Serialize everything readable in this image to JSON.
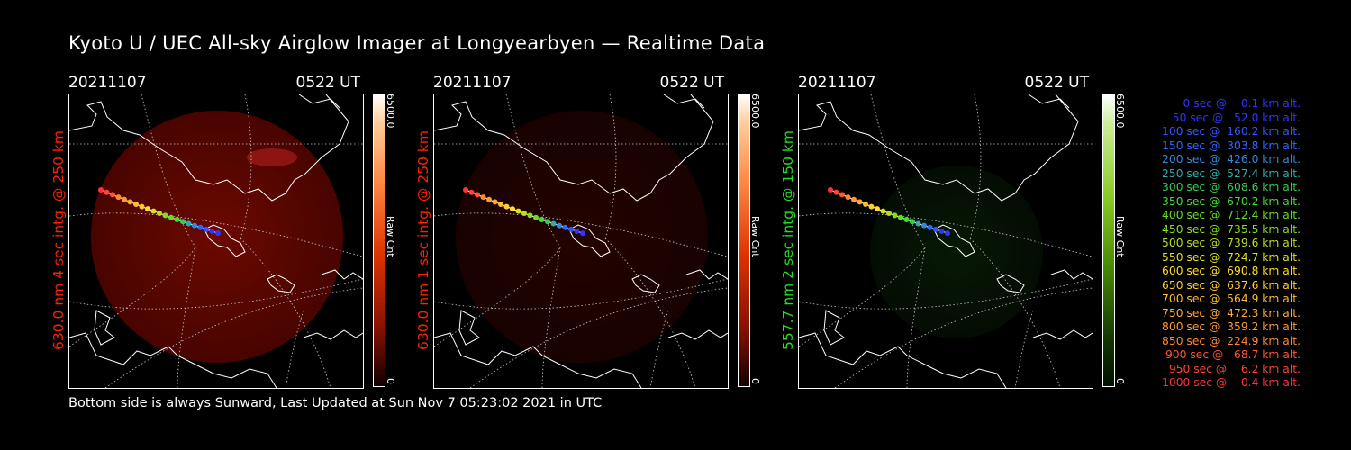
{
  "title": "Kyoto U / UEC All-sky Airglow Imager at Longyearbyen — Realtime Data",
  "footer": "Bottom side is always Sunward, Last Updated at Sun Nov  7 05:23:02 2021 in UTC",
  "colors": {
    "panel1_accent": "#ff2200",
    "panel2_accent": "#ff2200",
    "panel3_accent": "#22dd22",
    "track_start": "#ff3333",
    "track_mid": "#ffdd00",
    "track_end": "#3344ff"
  },
  "panels": [
    {
      "date": "20211107",
      "time": "0522 UT",
      "ylabel": "630.0 nm 4 sec intg. @ 250 km",
      "cbar_max": "6500.0",
      "cbar_min": "0",
      "cbar_unit": "Raw Cnt",
      "glow_intensity": 0.9,
      "glow_color": "red"
    },
    {
      "date": "20211107",
      "time": "0522 UT",
      "ylabel": "630.0 nm 1 sec intg. @ 250 km",
      "cbar_max": "6500.0",
      "cbar_min": "0",
      "cbar_unit": "Raw Cnt",
      "glow_intensity": 0.3,
      "glow_color": "red"
    },
    {
      "date": "20211107",
      "time": "0522 UT",
      "ylabel": "557.7 nm 2 sec intg. @ 150 km",
      "cbar_max": "6500.0",
      "cbar_min": "0",
      "cbar_unit": "Raw Cnt",
      "glow_intensity": 0.35,
      "glow_color": "green"
    }
  ],
  "legend": [
    {
      "text": "   0 sec @    0.1 km alt.",
      "color": "#3333ff"
    },
    {
      "text": "  50 sec @   52.0 km alt.",
      "color": "#3333ff"
    },
    {
      "text": " 100 sec @  160.2 km alt.",
      "color": "#3355ff"
    },
    {
      "text": " 150 sec @  303.8 km alt.",
      "color": "#3366ff"
    },
    {
      "text": " 200 sec @  426.0 km alt.",
      "color": "#3388dd"
    },
    {
      "text": " 250 sec @  527.4 km alt.",
      "color": "#33aaaa"
    },
    {
      "text": " 300 sec @  608.6 km alt.",
      "color": "#33cc55"
    },
    {
      "text": " 350 sec @  670.2 km alt.",
      "color": "#44dd33"
    },
    {
      "text": " 400 sec @  712.4 km alt.",
      "color": "#66dd22"
    },
    {
      "text": " 450 sec @  735.5 km alt.",
      "color": "#88dd22"
    },
    {
      "text": " 500 sec @  739.6 km alt.",
      "color": "#bbdd22"
    },
    {
      "text": " 550 sec @  724.7 km alt.",
      "color": "#dddd22"
    },
    {
      "text": " 600 sec @  690.8 km alt.",
      "color": "#ffdd22"
    },
    {
      "text": " 650 sec @  637.6 km alt.",
      "color": "#ffcc33"
    },
    {
      "text": " 700 sec @  564.9 km alt.",
      "color": "#ffbb33"
    },
    {
      "text": " 750 sec @  472.3 km alt.",
      "color": "#ffaa33"
    },
    {
      "text": " 800 sec @  359.2 km alt.",
      "color": "#ff9933"
    },
    {
      "text": " 850 sec @  224.9 km alt.",
      "color": "#ff8833"
    },
    {
      "text": " 900 sec @   68.7 km alt.",
      "color": "#ff5533"
    },
    {
      "text": " 950 sec @    6.2 km alt.",
      "color": "#ff4433"
    },
    {
      "text": "1000 sec @    0.4 km alt.",
      "color": "#ff3333"
    }
  ]
}
